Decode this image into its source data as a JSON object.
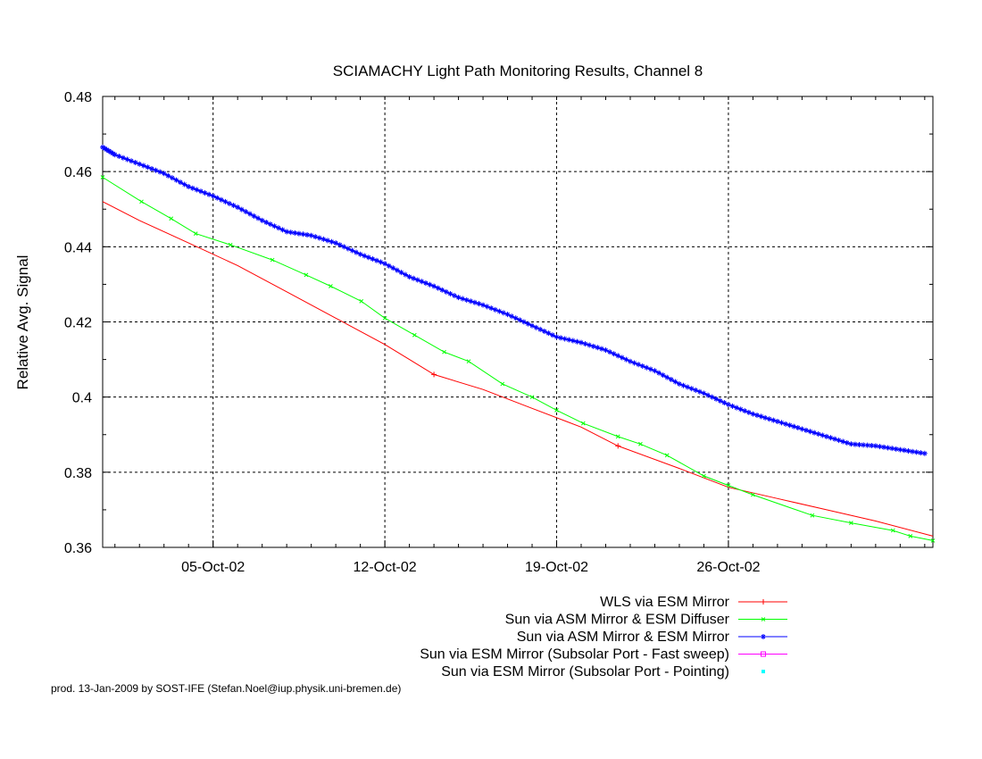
{
  "chart_data": {
    "type": "line",
    "title": "SCIAMACHY Light Path Monitoring Results, Channel 8",
    "xlabel": "",
    "ylabel": "Relative Avg. Signal",
    "x_axis": {
      "type": "date",
      "range": [
        "2002-09-30T12:00",
        "2002-11-03T08:00"
      ],
      "ticks": [
        {
          "value": "2002-10-05",
          "label": "05-Oct-02"
        },
        {
          "value": "2002-10-12",
          "label": "12-Oct-02"
        },
        {
          "value": "2002-10-19",
          "label": "19-Oct-02"
        },
        {
          "value": "2002-10-26",
          "label": "26-Oct-02"
        }
      ]
    },
    "y_axis": {
      "range": [
        0.36,
        0.48
      ],
      "ticks": [
        {
          "value": 0.36,
          "label": "0.36"
        },
        {
          "value": 0.38,
          "label": "0.38"
        },
        {
          "value": 0.4,
          "label": "0.4"
        },
        {
          "value": 0.42,
          "label": "0.42"
        },
        {
          "value": 0.44,
          "label": "0.44"
        },
        {
          "value": 0.46,
          "label": "0.46"
        },
        {
          "value": 0.48,
          "label": "0.48"
        }
      ]
    },
    "grid": true,
    "legend_position": "bottom-right",
    "series": [
      {
        "name": "WLS via ESM Mirror",
        "color": "#ff0000",
        "marker": "plus",
        "x": [
          "2002-09-30T12:00",
          "2002-10-02T00:00",
          "2002-10-04T00:00",
          "2002-10-06T00:00",
          "2002-10-08T00:00",
          "2002-10-10T00:00",
          "2002-10-12T00:00",
          "2002-10-13T00:00",
          "2002-10-14T00:00",
          "2002-10-16T00:00",
          "2002-10-18T00:00",
          "2002-10-20T00:00",
          "2002-10-21T12:00",
          "2002-10-24T00:00",
          "2002-10-26T00:00",
          "2002-10-28T00:00",
          "2002-10-30T00:00",
          "2002-11-01T00:00",
          "2002-11-03T08:00"
        ],
        "y": [
          0.452,
          0.447,
          0.441,
          0.435,
          0.428,
          0.421,
          0.414,
          0.41,
          0.406,
          0.402,
          0.397,
          0.392,
          0.387,
          0.381,
          0.376,
          0.373,
          0.37,
          0.367,
          0.363
        ],
        "marker_x": [
          "2002-10-14T00:00",
          "2002-10-21T12:00"
        ],
        "marker_y": [
          0.406,
          0.387
        ]
      },
      {
        "name": "Sun via ASM Mirror & ESM Diffuser",
        "color": "#00ff00",
        "marker": "cross",
        "x": [
          "2002-09-30T12:00",
          "2002-10-02T02:00",
          "2002-10-03T07:00",
          "2002-10-04T07:00",
          "2002-10-05T17:00",
          "2002-10-07T10:00",
          "2002-10-08T19:00",
          "2002-10-09T19:00",
          "2002-10-11T01:00",
          "2002-10-12T00:00",
          "2002-10-13T05:00",
          "2002-10-14T10:00",
          "2002-10-15T10:00",
          "2002-10-16T19:00",
          "2002-10-18T00:00",
          "2002-10-19T00:00",
          "2002-10-20T02:00",
          "2002-10-21T12:00",
          "2002-10-22T10:00",
          "2002-10-23T12:00",
          "2002-10-25T00:00",
          "2002-10-26T00:00",
          "2002-10-27T00:00",
          "2002-10-29T10:00",
          "2002-10-31T00:00",
          "2002-11-01T17:00",
          "2002-11-02T10:00",
          "2002-11-03T08:00"
        ],
        "y": [
          0.4585,
          0.452,
          0.4475,
          0.4435,
          0.4405,
          0.4365,
          0.4325,
          0.4295,
          0.4255,
          0.421,
          0.4165,
          0.412,
          0.4095,
          0.4035,
          0.4,
          0.3965,
          0.393,
          0.3895,
          0.3875,
          0.3845,
          0.379,
          0.3765,
          0.374,
          0.3685,
          0.3665,
          0.3645,
          0.363,
          0.3618
        ]
      },
      {
        "name": "Sun via ASM Mirror & ESM Mirror",
        "color": "#0000ff",
        "marker": "star",
        "x": [
          "2002-09-30T12:00",
          "2002-10-01T00:00",
          "2002-10-02T00:00",
          "2002-10-03T00:00",
          "2002-10-04T00:00",
          "2002-10-05T00:00",
          "2002-10-06T00:00",
          "2002-10-07T00:00",
          "2002-10-08T00:00",
          "2002-10-09T00:00",
          "2002-10-10T00:00",
          "2002-10-11T00:00",
          "2002-10-12T00:00",
          "2002-10-13T00:00",
          "2002-10-14T00:00",
          "2002-10-15T00:00",
          "2002-10-16T00:00",
          "2002-10-17T00:00",
          "2002-10-18T00:00",
          "2002-10-19T00:00",
          "2002-10-20T00:00",
          "2002-10-21T00:00",
          "2002-10-22T00:00",
          "2002-10-23T00:00",
          "2002-10-24T00:00",
          "2002-10-25T00:00",
          "2002-10-26T00:00",
          "2002-10-27T00:00",
          "2002-10-28T00:00",
          "2002-10-29T00:00",
          "2002-10-30T00:00",
          "2002-10-31T00:00",
          "2002-11-01T00:00",
          "2002-11-02T00:00",
          "2002-11-03T00:00"
        ],
        "y": [
          0.4665,
          0.4645,
          0.462,
          0.4595,
          0.456,
          0.4535,
          0.4505,
          0.447,
          0.444,
          0.443,
          0.441,
          0.438,
          0.4355,
          0.432,
          0.4295,
          0.4265,
          0.4245,
          0.422,
          0.419,
          0.416,
          0.4145,
          0.4125,
          0.4095,
          0.407,
          0.4035,
          0.401,
          0.398,
          0.3955,
          0.3935,
          0.3915,
          0.3895,
          0.3875,
          0.387,
          0.386,
          0.385
        ]
      },
      {
        "name": "Sun via ESM Mirror (Subsolar Port - Fast sweep)",
        "color": "#ff00ff",
        "marker": "square",
        "x": [],
        "y": []
      },
      {
        "name": "Sun via ESM Mirror (Subsolar Port - Pointing)",
        "color": "#00ffff",
        "marker": "dot",
        "x": [],
        "y": []
      }
    ]
  },
  "footer": "prod. 13-Jan-2009 by SOST-IFE (Stefan.Noel@iup.physik.uni-bremen.de)"
}
